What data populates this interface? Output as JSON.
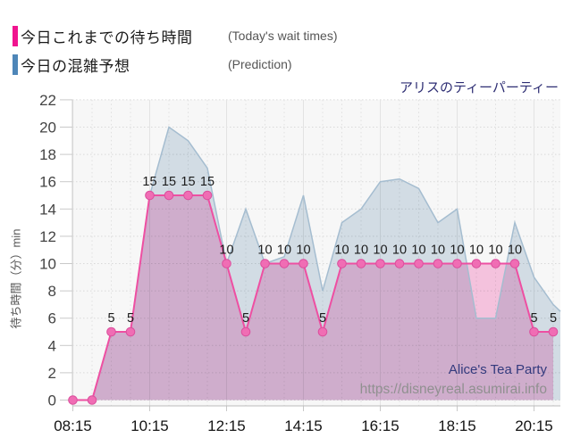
{
  "title": "アリスのティーパーティー",
  "legend": {
    "actual": {
      "label_jp": "今日これまでの待ち時間",
      "label_en": "(Today's wait times)",
      "color": "#f0148f"
    },
    "prediction": {
      "label_jp": "今日の混雑予想",
      "label_en": "(Prediction)",
      "color": "#4e86b8"
    }
  },
  "watermark": {
    "name": "Alice's Tea Party",
    "url": "https://disneyreal.asumirai.info"
  },
  "chart_data": {
    "type": "area",
    "x": [
      "08:15",
      "08:45",
      "09:15",
      "09:45",
      "10:15",
      "10:45",
      "11:15",
      "11:45",
      "12:15",
      "12:45",
      "13:15",
      "13:45",
      "14:15",
      "14:45",
      "15:15",
      "15:45",
      "16:15",
      "16:45",
      "17:15",
      "17:45",
      "18:15",
      "18:45",
      "19:15",
      "19:45",
      "20:15",
      "20:45"
    ],
    "x_tick_labels": [
      "08:15",
      "10:15",
      "12:15",
      "14:15",
      "16:15",
      "18:15",
      "20:15"
    ],
    "y_ticks": [
      0,
      2,
      4,
      6,
      8,
      10,
      12,
      14,
      16,
      18,
      20,
      22
    ],
    "ylim": [
      0,
      22
    ],
    "ylabel": "待ち時間（分）min",
    "grid": true,
    "legend_position": "top-left",
    "series": [
      {
        "name": "今日これまでの待ち時間 (Today's wait times)",
        "values": [
          0,
          0,
          5,
          5,
          15,
          15,
          15,
          15,
          10,
          5,
          10,
          10,
          10,
          5,
          10,
          10,
          10,
          10,
          10,
          10,
          10,
          10,
          10,
          10,
          5,
          5
        ],
        "line_color": "#ee4fa2",
        "fill_color": "#fcc9e5",
        "marker_color": "#f06db4",
        "markers": true,
        "data_labels": true
      },
      {
        "name": "今日の混雑予想 (Prediction)",
        "values": [
          0,
          0,
          5,
          5,
          15,
          20,
          19,
          17,
          10,
          14,
          10,
          10.5,
          15,
          8,
          13,
          14,
          16,
          16.2,
          15.5,
          13,
          14,
          6,
          6,
          13,
          9,
          7
        ],
        "tail_value": 6.5,
        "line_color": "#a5bdd0",
        "fill_color": "#d9e4ec",
        "markers": false,
        "data_labels": false
      }
    ],
    "plot_bg": "#f7f7f7"
  }
}
